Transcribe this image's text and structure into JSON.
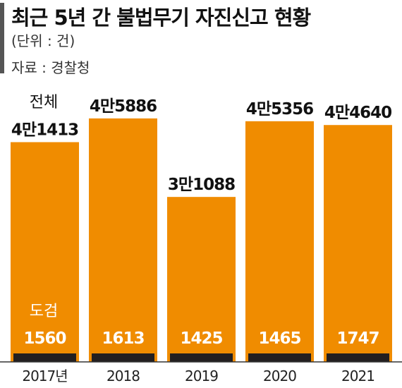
{
  "header": {
    "title": "최근 5년 간 불법무기 자진신고 현황",
    "unit": "(단위 : 건)",
    "source": "자료 : 경찰청"
  },
  "colors": {
    "accent": "#F08C00",
    "base": "#231F20",
    "axis": "#333333"
  },
  "chart_data": {
    "type": "bar",
    "title": "최근 5년 간 불법무기 자진신고 현황",
    "categories": [
      "2017년",
      "2018",
      "2019",
      "2020",
      "2021"
    ],
    "series": [
      {
        "name": "전체",
        "values": [
          41413,
          45886,
          31088,
          45356,
          44640
        ],
        "labels": [
          "4만1413",
          "4만5886",
          "3만1088",
          "4만5356",
          "4만4640"
        ]
      },
      {
        "name": "도검",
        "values": [
          1560,
          1613,
          1425,
          1465,
          1747
        ],
        "labels": [
          "1560",
          "1613",
          "1425",
          "1465",
          "1747"
        ]
      }
    ],
    "ylim": [
      0,
      46000
    ]
  }
}
